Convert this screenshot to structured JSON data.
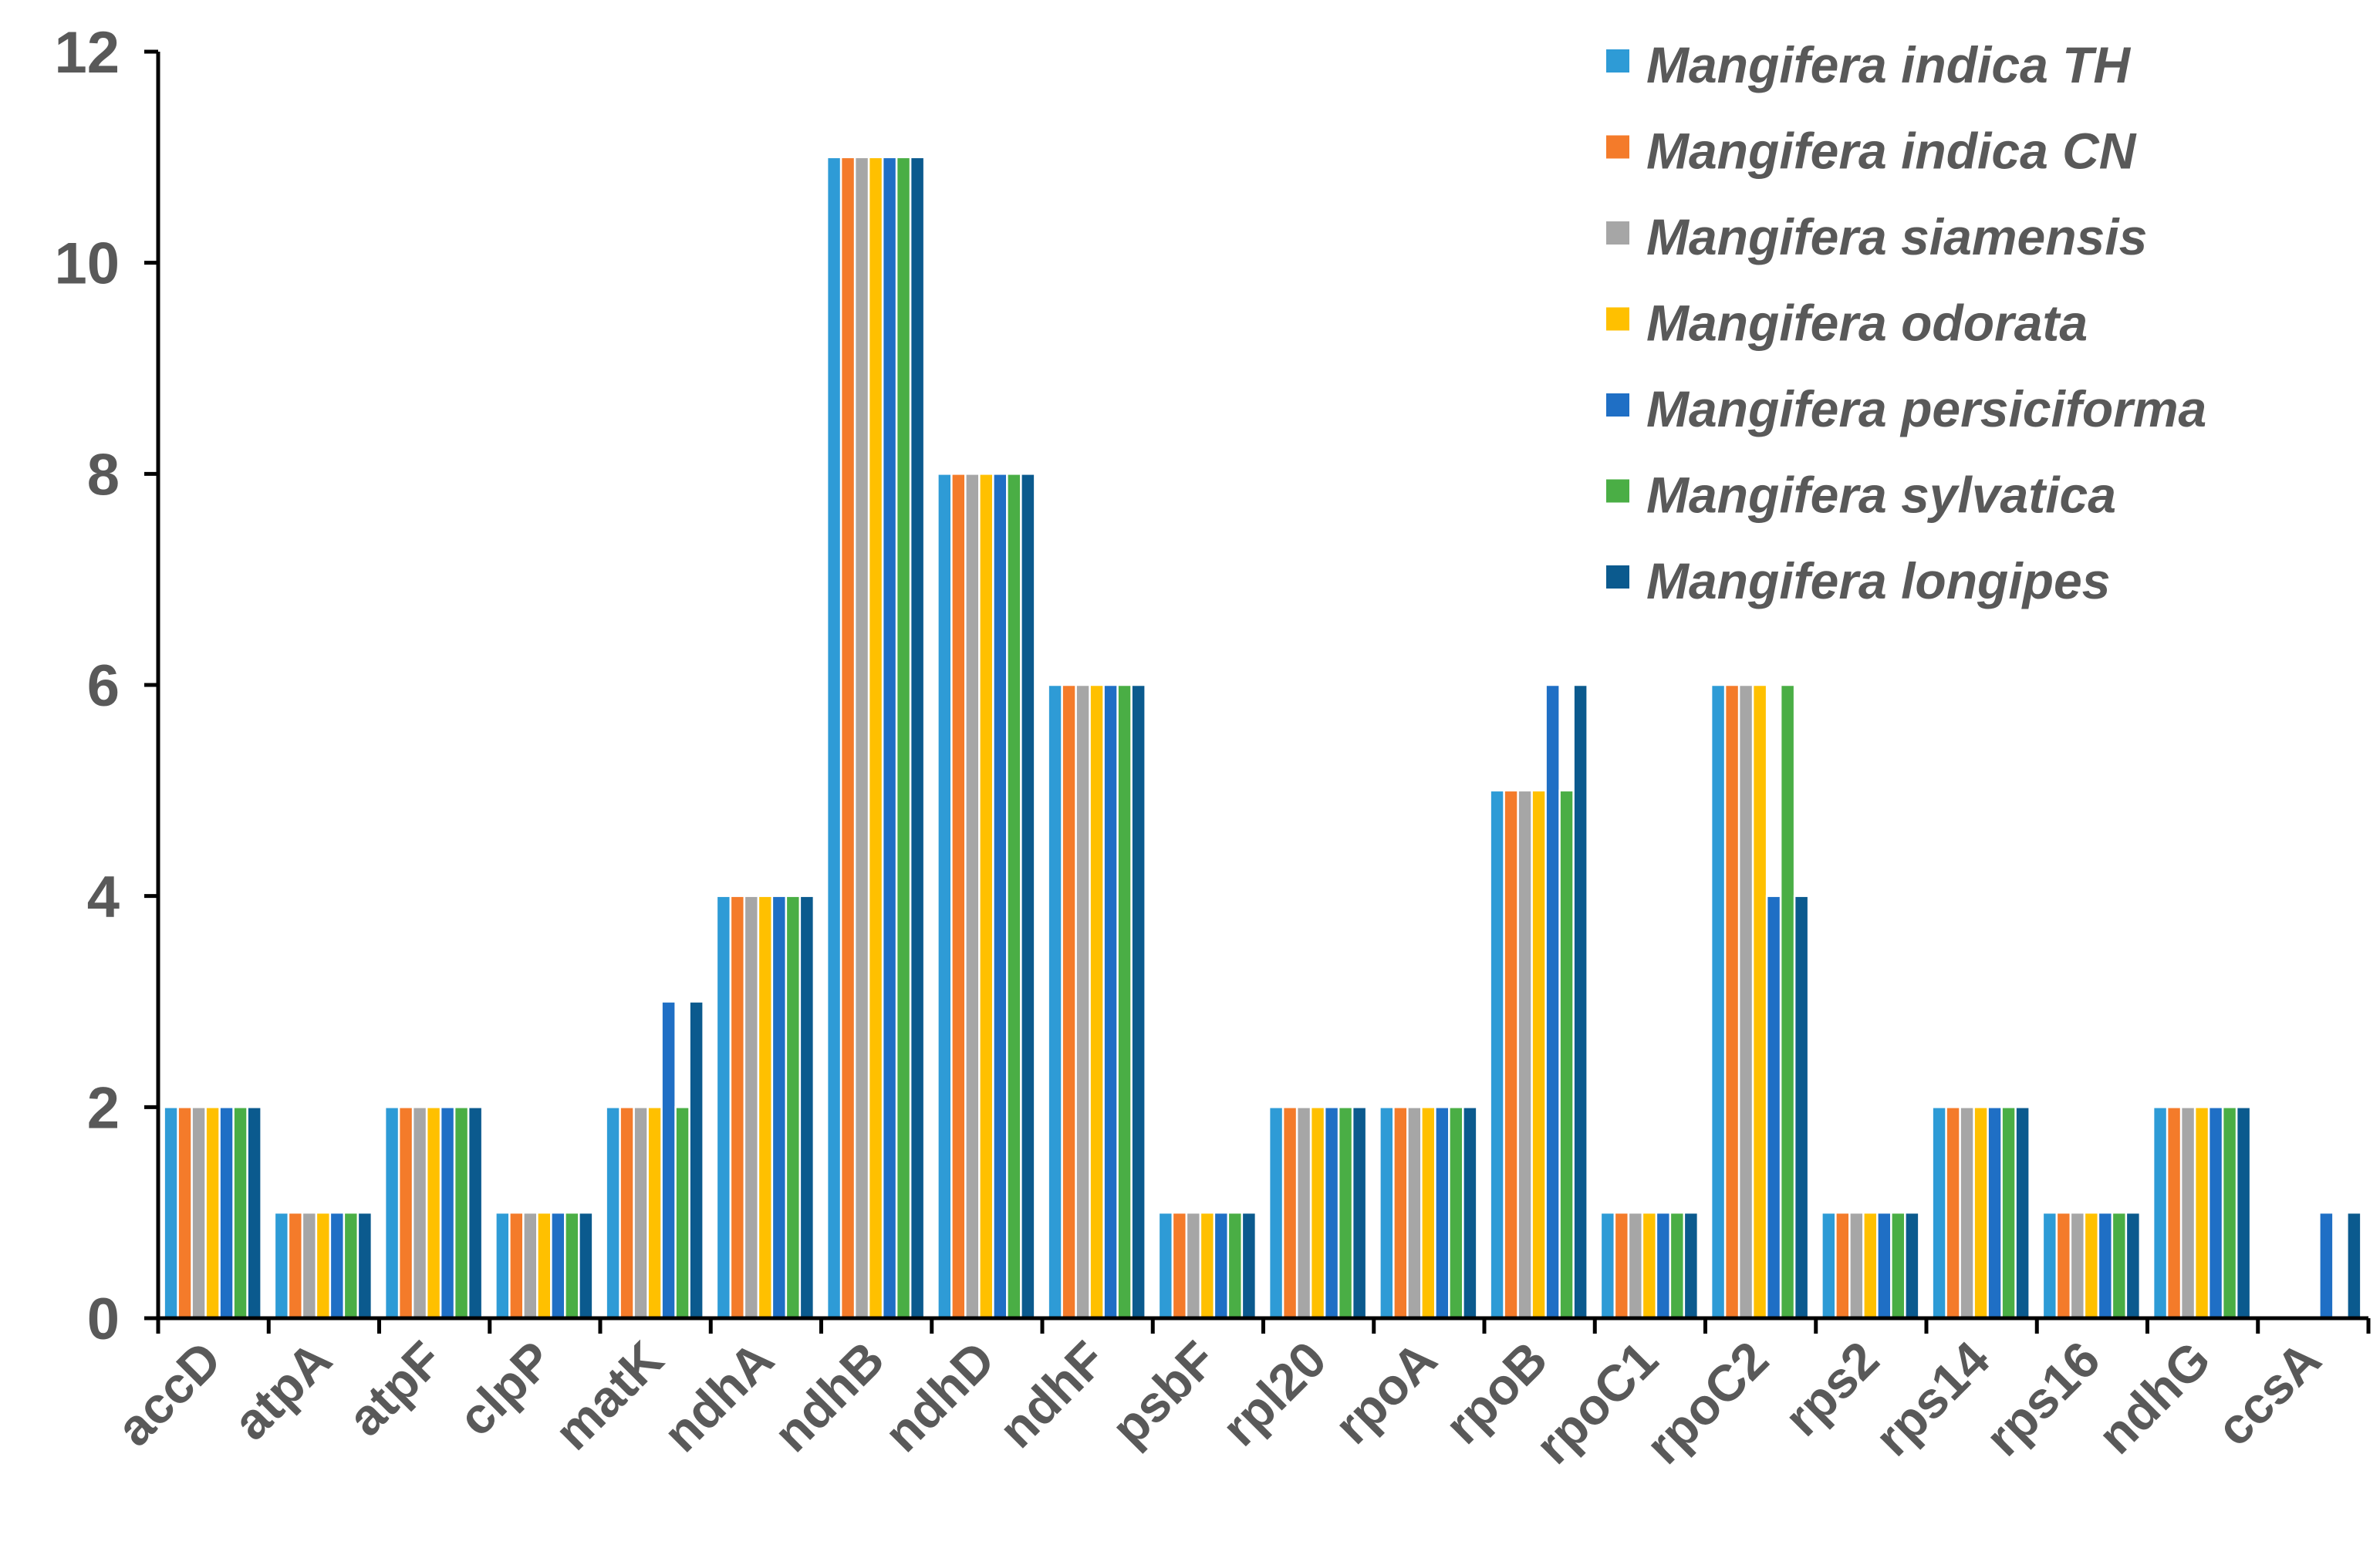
{
  "chart_data": {
    "type": "bar",
    "title": "",
    "xlabel": "",
    "ylabel": "",
    "ylim": [
      0,
      12
    ],
    "yticks": [
      0,
      2,
      4,
      6,
      8,
      10,
      12
    ],
    "grid": false,
    "legend_position": "top-right",
    "categories": [
      "accD",
      "atpA",
      "atpF",
      "clpP",
      "matK",
      "ndhA",
      "ndhB",
      "ndhD",
      "ndhF",
      "psbF",
      "rpl20",
      "rpoA",
      "rpoB",
      "rpoC1",
      "rpoC2",
      "rps2",
      "rps14",
      "rps16",
      "ndhG",
      "ccsA"
    ],
    "series": [
      {
        "name": "Mangifera indica TH",
        "color": "#2E9BD6",
        "values": [
          2,
          1,
          2,
          1,
          2,
          4,
          11,
          8,
          6,
          1,
          2,
          2,
          5,
          1,
          6,
          1,
          2,
          1,
          2,
          0
        ]
      },
      {
        "name": "Mangifera indica CN",
        "color": "#F47B2A",
        "values": [
          2,
          1,
          2,
          1,
          2,
          4,
          11,
          8,
          6,
          1,
          2,
          2,
          5,
          1,
          6,
          1,
          2,
          1,
          2,
          0
        ]
      },
      {
        "name": "Mangifera siamensis",
        "color": "#A6A6A6",
        "values": [
          2,
          1,
          2,
          1,
          2,
          4,
          11,
          8,
          6,
          1,
          2,
          2,
          5,
          1,
          6,
          1,
          2,
          1,
          2,
          0
        ]
      },
      {
        "name": "Mangifera odorata",
        "color": "#FFC000",
        "values": [
          2,
          1,
          2,
          1,
          2,
          4,
          11,
          8,
          6,
          1,
          2,
          2,
          5,
          1,
          6,
          1,
          2,
          1,
          2,
          0
        ]
      },
      {
        "name": "Mangifera persiciforma",
        "color": "#1F6FC5",
        "values": [
          2,
          1,
          2,
          1,
          3,
          4,
          11,
          8,
          6,
          1,
          2,
          2,
          6,
          1,
          4,
          1,
          2,
          1,
          2,
          1
        ]
      },
      {
        "name": "Mangifera sylvatica",
        "color": "#4AAE45",
        "values": [
          2,
          1,
          2,
          1,
          2,
          4,
          11,
          8,
          6,
          1,
          2,
          2,
          5,
          1,
          6,
          1,
          2,
          1,
          2,
          0
        ]
      },
      {
        "name": "Mangifera longipes",
        "color": "#0B5A8E",
        "values": [
          2,
          1,
          2,
          1,
          3,
          4,
          11,
          8,
          6,
          1,
          2,
          2,
          6,
          1,
          4,
          1,
          2,
          1,
          2,
          1
        ]
      }
    ]
  }
}
